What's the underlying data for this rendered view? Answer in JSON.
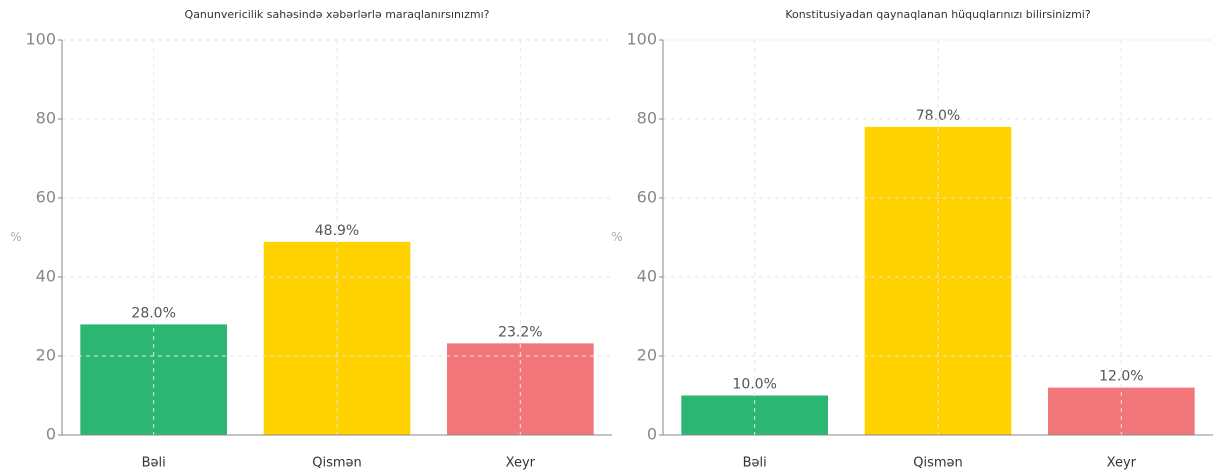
{
  "chart_data": [
    {
      "type": "bar",
      "title": "Qanunvericilik sahəsində xəbərlərlə maraqlanırsınızmı?",
      "y_label": "%",
      "categories": [
        "Bəli",
        "Qismən",
        "Xeyr"
      ],
      "values": [
        28.0,
        48.9,
        23.2
      ],
      "value_labels": [
        "28.0%",
        "48.9%",
        "23.2%"
      ],
      "colors": [
        "#2bb673",
        "#ffd200",
        "#f1777a"
      ],
      "ylim": [
        0,
        100
      ],
      "yticks": [
        0,
        20,
        40,
        60,
        80,
        100
      ],
      "grid": true
    },
    {
      "type": "bar",
      "title": "Konstitusiyadan qaynaqlanan hüquqlarınızı bilirsinizmi?",
      "y_label": "%",
      "categories": [
        "Bəli",
        "Qismən",
        "Xeyr"
      ],
      "values": [
        10.0,
        78.0,
        12.0
      ],
      "value_labels": [
        "10.0%",
        "78.0%",
        "12.0%"
      ],
      "colors": [
        "#2bb673",
        "#ffd200",
        "#f1777a"
      ],
      "ylim": [
        0,
        100
      ],
      "yticks": [
        0,
        20,
        40,
        60,
        80,
        100
      ],
      "grid": true
    }
  ]
}
